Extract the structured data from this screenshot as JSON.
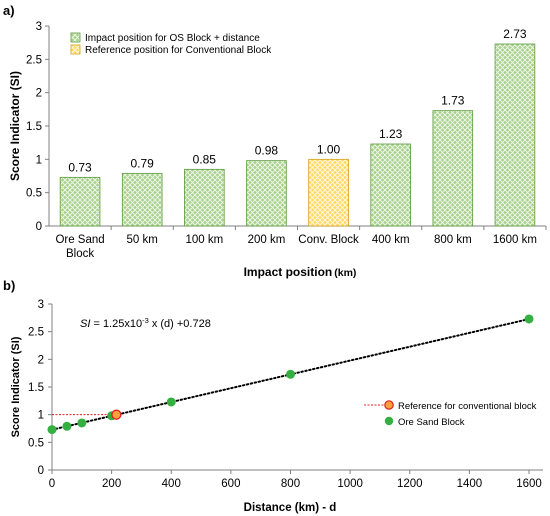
{
  "chart_data": [
    {
      "panel_label": "a)",
      "type": "bar",
      "categories": [
        "Ore Sand\nBlock",
        "50 km",
        "100 km",
        "200 km",
        "Conv. Block",
        "400 km",
        "800 km",
        "1600 km"
      ],
      "values": [
        0.73,
        0.79,
        0.85,
        0.98,
        1.0,
        1.23,
        1.73,
        2.73
      ],
      "data_labels": [
        "0.73",
        "0.79",
        "0.85",
        "0.98",
        "1.00",
        "1.23",
        "1.73",
        "2.73"
      ],
      "highlight_index": 4,
      "xlabel": "Impact position",
      "xlabel_unit": "(km)",
      "ylabel": "Score Indicator (SI)",
      "ylim": [
        0,
        3
      ],
      "yticks": [
        0,
        0.5,
        1,
        1.5,
        2,
        2.5,
        3
      ],
      "ytick_labels": [
        "0",
        "0.5",
        "1",
        "1.5",
        "2",
        "2.5",
        "3"
      ],
      "legend": [
        {
          "label": "Impact position for OS Block + distance",
          "color": "#a9d18e"
        },
        {
          "label": "Reference position for Conventional Block",
          "color": "#ffd966"
        }
      ],
      "legend_position": "top-left",
      "colors": {
        "green_fill": "#a9d18e",
        "green_stroke": "#5b9a3c",
        "yellow_fill": "#ffd966",
        "yellow_stroke": "#d4a017"
      }
    },
    {
      "panel_label": "b)",
      "type": "scatter",
      "series": [
        {
          "name": "Ore Sand Block",
          "x": [
            0,
            50,
            100,
            200,
            400,
            800,
            1600
          ],
          "y": [
            0.73,
            0.79,
            0.85,
            0.98,
            1.23,
            1.73,
            2.73
          ],
          "color": "#33b040"
        },
        {
          "name": "Reference for conventional block",
          "x": [
            216
          ],
          "y": [
            1.0
          ],
          "color": "#f7a23b",
          "edge": "#e02020",
          "line_y": 1.0
        }
      ],
      "trendline": {
        "x": [
          0,
          1600
        ],
        "y": [
          0.728,
          2.728
        ],
        "style": "dotted"
      },
      "equation_prefix": "SI",
      "equation_body": " = 1.25x10",
      "equation_exp": "-3",
      "equation_suffix": " x (d) +0.728",
      "xlabel": "Distance (km) - d",
      "ylabel": "Score Indicator (SI)",
      "xlim": [
        0,
        1600
      ],
      "ylim": [
        0,
        3
      ],
      "xticks": [
        0,
        200,
        400,
        600,
        800,
        1000,
        1200,
        1400,
        1600
      ],
      "xtick_labels": [
        "0",
        "200",
        "400",
        "600",
        "800",
        "1000",
        "1200",
        "1400",
        "1600"
      ],
      "yticks": [
        0,
        0.5,
        1,
        1.5,
        2,
        2.5,
        3
      ],
      "ytick_labels": [
        "0",
        "0.5",
        "1",
        "1.5",
        "2",
        "2.5",
        "3"
      ],
      "legend_position": "right"
    }
  ]
}
